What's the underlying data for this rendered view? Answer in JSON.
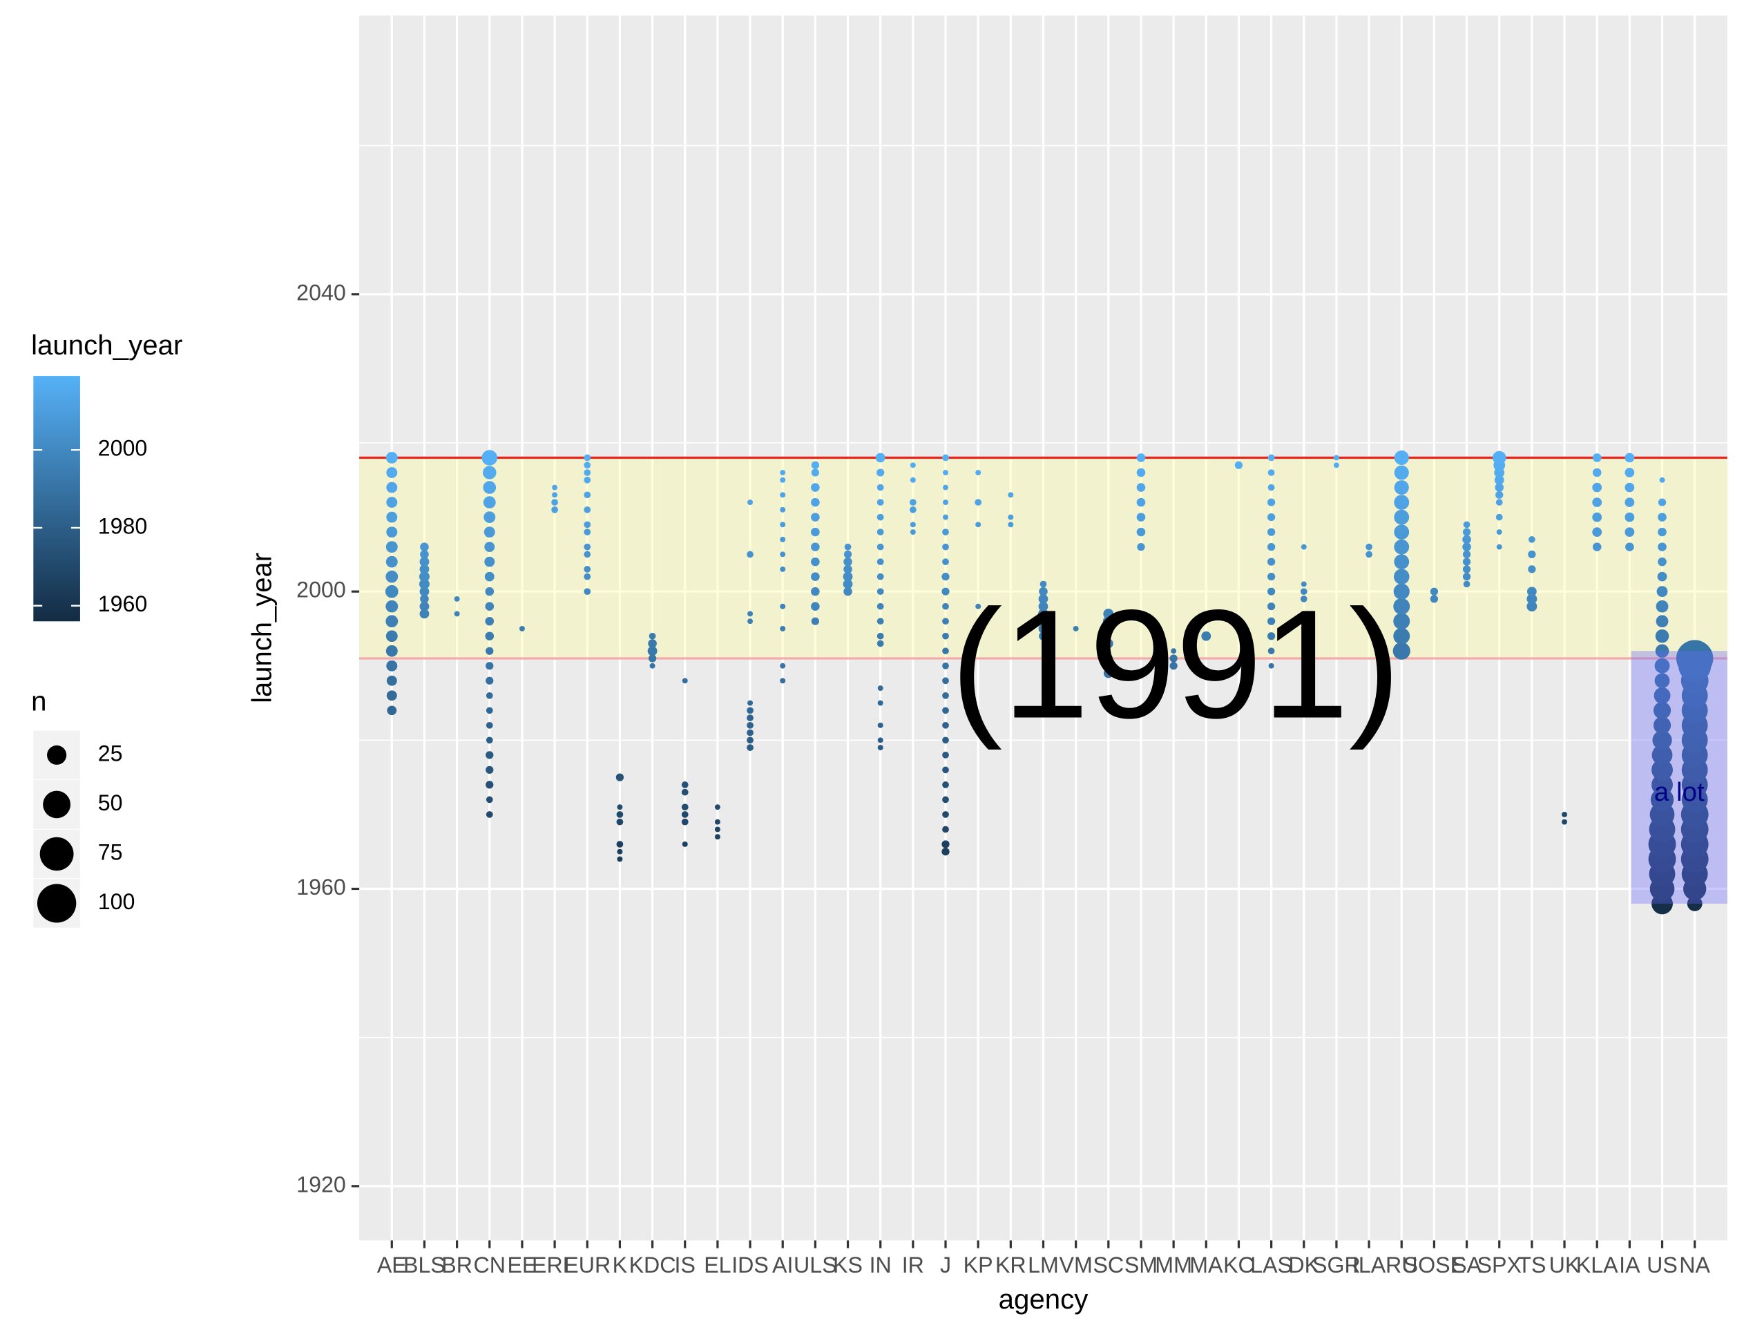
{
  "chart_data": {
    "type": "dotcolumns",
    "x_label": "agency",
    "y_label": "launch_year",
    "categories": [
      "AE",
      "BLS",
      "BR",
      "CN",
      "EE",
      "ERE",
      "EUR",
      "K",
      "KDC",
      "IS",
      "EL",
      "IDS",
      "AI",
      "ULS",
      "KS",
      "IN",
      "IR",
      "J",
      "KP",
      "KR",
      "LM",
      "VM",
      "SC",
      "SM",
      "MM",
      "MA",
      "KC",
      "LAS",
      "DK",
      "SGR",
      "ILA",
      "RU",
      "SOSE",
      "SA",
      "SPX",
      "TS",
      "UK",
      "KLA",
      "IA",
      "US",
      "NA"
    ],
    "groups": [
      {
        "years": [
          1984,
          1986,
          1988,
          1990,
          1992,
          1994,
          1996,
          1998,
          2000,
          2002,
          2004,
          2006,
          2008,
          2010,
          2012,
          2014,
          2016,
          2018
        ],
        "n": [
          6,
          7,
          7,
          8,
          9,
          9,
          10,
          10,
          11,
          10,
          9,
          9,
          8,
          8,
          8,
          8,
          8,
          9
        ]
      },
      {
        "years": [
          1997,
          1998,
          1999,
          2000,
          2001,
          2002,
          2003,
          2004,
          2005,
          2006
        ],
        "n": [
          6,
          6,
          5,
          6,
          7,
          7,
          6,
          6,
          5,
          5
        ]
      },
      {
        "years": [
          1997,
          1999
        ],
        "n": [
          2,
          2
        ]
      },
      {
        "years": [
          1970,
          1972,
          1974,
          1976,
          1978,
          1980,
          1982,
          1984,
          1986,
          1988,
          1990,
          1992,
          1994,
          1996,
          1998,
          2000,
          2002,
          2004,
          2006,
          2008,
          2010,
          2012,
          2014,
          2016,
          2018
        ],
        "n": [
          3,
          3,
          4,
          4,
          4,
          3,
          3,
          3,
          3,
          4,
          4,
          4,
          5,
          5,
          5,
          5,
          6,
          7,
          7,
          8,
          9,
          10,
          11,
          12,
          16
        ]
      },
      {
        "years": [
          1995
        ],
        "n": [
          2
        ]
      },
      {
        "years": [
          2011,
          2012,
          2013,
          2014
        ],
        "n": [
          3,
          3,
          2,
          2
        ]
      },
      {
        "years": [
          2000,
          2002,
          2003,
          2005,
          2006,
          2008,
          2009,
          2011,
          2013,
          2015,
          2016,
          2017,
          2018
        ],
        "n": [
          3,
          3,
          3,
          3,
          3,
          3,
          3,
          3,
          3,
          3,
          3,
          3,
          3
        ]
      },
      {
        "years": [
          1964,
          1965,
          1966,
          1969,
          1970,
          1971,
          1975
        ],
        "n": [
          2,
          2,
          3,
          3,
          3,
          2,
          4
        ]
      },
      {
        "years": [
          1990,
          1991,
          1992,
          1993,
          1994
        ],
        "n": [
          2,
          4,
          6,
          5,
          3
        ]
      },
      {
        "years": [
          1966,
          1969,
          1970,
          1971,
          1973,
          1974,
          1988
        ],
        "n": [
          2,
          3,
          3,
          3,
          3,
          3,
          2
        ]
      },
      {
        "years": [
          1967,
          1968,
          1969,
          1971
        ],
        "n": [
          2,
          2,
          2,
          2
        ]
      },
      {
        "years": [
          1979,
          1980,
          1981,
          1982,
          1983,
          1984,
          1985,
          1996,
          1997,
          2005,
          2012
        ],
        "n": [
          3,
          3,
          3,
          3,
          3,
          3,
          2,
          2,
          2,
          3,
          2
        ]
      },
      {
        "years": [
          1988,
          1990,
          1995,
          1998,
          2003,
          2005,
          2007,
          2009,
          2011,
          2013,
          2015,
          2016
        ],
        "n": [
          2,
          2,
          2,
          2,
          2,
          2,
          2,
          2,
          2,
          2,
          2,
          2
        ]
      },
      {
        "years": [
          1996,
          1998,
          2000,
          2002,
          2004,
          2006,
          2008,
          2010,
          2012,
          2014,
          2016,
          2017
        ],
        "n": [
          4,
          5,
          5,
          5,
          5,
          5,
          5,
          5,
          5,
          5,
          4,
          4
        ]
      },
      {
        "years": [
          2000,
          2001,
          2002,
          2003,
          2004,
          2005,
          2006
        ],
        "n": [
          5,
          6,
          6,
          5,
          5,
          4,
          3
        ]
      },
      {
        "years": [
          1979,
          1980,
          1982,
          1985,
          1987,
          1993,
          1994,
          1996,
          1998,
          2000,
          2002,
          2004,
          2006,
          2008,
          2010,
          2012,
          2014,
          2016,
          2018
        ],
        "n": [
          2,
          2,
          2,
          2,
          2,
          3,
          3,
          3,
          3,
          3,
          3,
          3,
          3,
          3,
          3,
          3,
          3,
          4,
          6
        ]
      },
      {
        "years": [
          2008,
          2009,
          2011,
          2012,
          2015,
          2017
        ],
        "n": [
          2,
          2,
          3,
          3,
          2,
          2
        ]
      },
      {
        "years": [
          1965,
          1966,
          1968,
          1970,
          1972,
          1974,
          1976,
          1978,
          1980,
          1982,
          1984,
          1986,
          1988,
          1990,
          1992,
          1994,
          1996,
          1998,
          2000,
          2002,
          2004,
          2006,
          2008,
          2010,
          2012,
          2014,
          2016,
          2018
        ],
        "n": [
          4,
          4,
          3,
          3,
          3,
          3,
          3,
          3,
          3,
          3,
          3,
          3,
          3,
          3,
          3,
          3,
          3,
          3,
          4,
          4,
          3,
          3,
          3,
          2,
          2,
          2,
          2,
          3
        ]
      },
      {
        "years": [
          1998,
          2009,
          2012,
          2016
        ],
        "n": [
          2,
          2,
          3,
          2
        ]
      },
      {
        "years": [
          2009,
          2010,
          2013
        ],
        "n": [
          2,
          2,
          2
        ]
      },
      {
        "years": [
          1994,
          1995,
          1996,
          1997,
          1998,
          1999,
          2000,
          2001
        ],
        "n": [
          5,
          6,
          6,
          7,
          6,
          6,
          5,
          3
        ]
      },
      {
        "years": [
          1995
        ],
        "n": [
          2
        ]
      },
      {
        "years": [
          1989,
          1990,
          1991,
          1993,
          1995,
          1996,
          1997
        ],
        "n": [
          6,
          5,
          5,
          6,
          7,
          8,
          7
        ]
      },
      {
        "years": [
          2006,
          2008,
          2010,
          2012,
          2014,
          2016,
          2018
        ],
        "n": [
          4,
          5,
          5,
          5,
          5,
          5,
          5
        ]
      },
      {
        "years": [
          1990,
          1991,
          1992
        ],
        "n": [
          4,
          4,
          2
        ]
      },
      {
        "years": [
          1994
        ],
        "n": [
          6
        ]
      },
      {
        "years": [
          2017
        ],
        "n": [
          4
        ]
      },
      {
        "years": [
          1990,
          1992,
          1994,
          1996,
          1998,
          2000,
          2002,
          2004,
          2006,
          2008,
          2010,
          2012,
          2014,
          2016,
          2018
        ],
        "n": [
          2,
          3,
          4,
          4,
          4,
          4,
          4,
          4,
          4,
          4,
          4,
          4,
          3,
          3,
          3
        ]
      },
      {
        "years": [
          1995,
          1999,
          2000,
          2001,
          2006
        ],
        "n": [
          2,
          3,
          3,
          2,
          2
        ]
      },
      {
        "years": [
          2017,
          2018
        ],
        "n": [
          2,
          2
        ]
      },
      {
        "years": [
          2005,
          2006
        ],
        "n": [
          3,
          3
        ]
      },
      {
        "years": [
          1992,
          1994,
          1996,
          1998,
          2000,
          2002,
          2004,
          2006,
          2008,
          2010,
          2012,
          2014,
          2016,
          2018
        ],
        "n": [
          20,
          18,
          18,
          18,
          17,
          16,
          15,
          15,
          15,
          15,
          15,
          14,
          14,
          14
        ]
      },
      {
        "years": [
          1999,
          2000
        ],
        "n": [
          4,
          4
        ]
      },
      {
        "years": [
          2001,
          2002,
          2003,
          2004,
          2005,
          2006,
          2007,
          2008,
          2009
        ],
        "n": [
          3,
          4,
          4,
          4,
          4,
          5,
          5,
          4,
          3
        ]
      },
      {
        "years": [
          2006,
          2008,
          2010,
          2012,
          2013,
          2014,
          2015,
          2016,
          2017,
          2018
        ],
        "n": [
          2,
          2,
          3,
          3,
          4,
          5,
          6,
          7,
          9,
          12
        ]
      },
      {
        "years": [
          1998,
          1999,
          2000,
          2003,
          2005,
          2007
        ],
        "n": [
          7,
          7,
          6,
          4,
          4,
          3
        ]
      },
      {
        "years": [
          1969,
          1970
        ],
        "n": [
          2,
          2
        ]
      },
      {
        "years": [
          2006,
          2008,
          2010,
          2012,
          2014,
          2016,
          2018
        ],
        "n": [
          5,
          6,
          6,
          6,
          6,
          5,
          5
        ]
      },
      {
        "years": [
          2006,
          2008,
          2010,
          2012,
          2014,
          2016,
          2018
        ],
        "n": [
          5,
          6,
          6,
          6,
          6,
          6,
          6
        ]
      },
      {
        "years": [
          1958,
          1960,
          1962,
          1964,
          1966,
          1968,
          1970,
          1972,
          1974,
          1976,
          1978,
          1980,
          1982,
          1984,
          1986,
          1988,
          1990,
          1992,
          1994,
          1996,
          1998,
          2000,
          2002,
          2004,
          2006,
          2008,
          2010,
          2012,
          2015
        ],
        "n": [
          30,
          40,
          45,
          50,
          50,
          45,
          40,
          35,
          30,
          30,
          28,
          25,
          20,
          20,
          18,
          15,
          15,
          12,
          12,
          10,
          10,
          8,
          6,
          5,
          5,
          5,
          5,
          4,
          2
        ]
      },
      {
        "years": [
          1958,
          1960,
          1962,
          1964,
          1966,
          1968,
          1970,
          1972,
          1974,
          1976,
          1978,
          1980,
          1982,
          1984,
          1986,
          1988,
          1990,
          1991
        ],
        "n": [
          15,
          35,
          45,
          50,
          50,
          50,
          50,
          45,
          45,
          45,
          45,
          45,
          45,
          45,
          45,
          50,
          70,
          90
        ]
      }
    ],
    "ylim": [
      1912.7,
      2077.5
    ],
    "yticks": [
      1920,
      1960,
      2000,
      2040
    ],
    "minor_yticks": [
      1940,
      1980,
      2020,
      2060
    ],
    "grid": true,
    "color_scale": {
      "title": "launch_year",
      "low": "#132B43",
      "high": "#56B1F7",
      "limits": [
        1956,
        2019
      ],
      "breaks": [
        1960,
        1980,
        2000
      ]
    },
    "size_scale": {
      "title": "n",
      "breaks": [
        25,
        50,
        75,
        100
      ]
    },
    "band": {
      "ymin": 1991,
      "ymax": 2018,
      "color": "#ffff99"
    },
    "hlines": [
      {
        "y": 2018,
        "color": "#e8251c"
      },
      {
        "y": 1991,
        "color": "#f6a9a9"
      }
    ],
    "highlight": {
      "categories": [
        "US",
        "NA"
      ],
      "ymin": 1958,
      "ymax": 1992,
      "color": "#6666ff"
    },
    "annotations": [
      {
        "text": "(1991)",
        "size": "large"
      },
      {
        "text": "a lot",
        "size": "small",
        "color": "#00008b"
      }
    ]
  }
}
